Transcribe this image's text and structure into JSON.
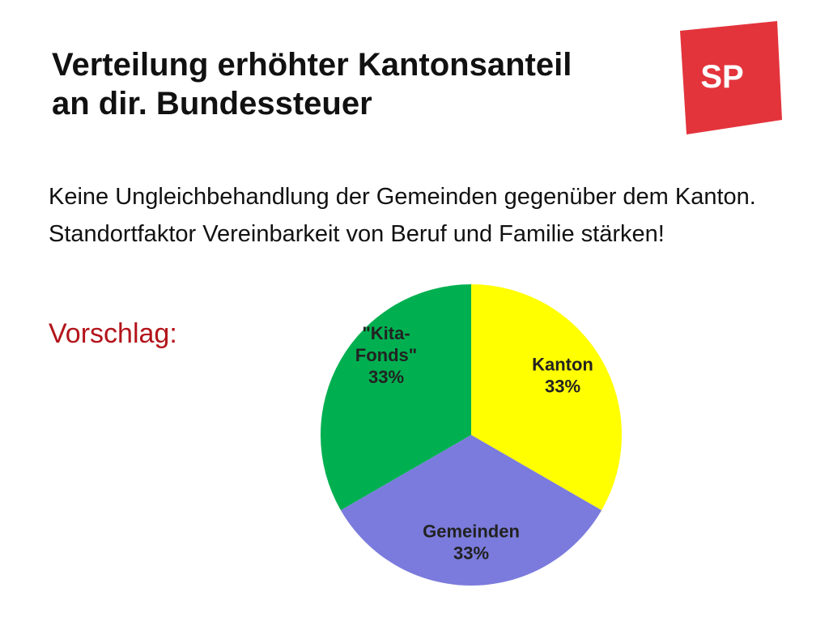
{
  "slide": {
    "title_line1": "Verteilung erhöhter Kantonsanteil",
    "title_line2": "an dir. Bundessteuer",
    "logo_text": "SP",
    "body": [
      "Keine Ungleichbehandlung der Gemeinden gegenüber dem Kanton.",
      "Standortfaktor Vereinbarkeit von Beruf und Familie stärken!"
    ],
    "proposal_label": "Vorschlag:"
  },
  "colors": {
    "brand_red": "#E3343C",
    "proposal_text": "#B3141B",
    "kanton": "#FFFF00",
    "gemeinden": "#7B7BDD",
    "kita": "#00B050"
  },
  "chart_data": {
    "type": "pie",
    "title": "",
    "slices": [
      {
        "name": "Kanton",
        "label_lines": [
          "Kanton",
          "33%"
        ],
        "value": 33,
        "color": "#FFFF00"
      },
      {
        "name": "Gemeinden",
        "label_lines": [
          "Gemeinden",
          "33%"
        ],
        "value": 33,
        "color": "#7B7BDD"
      },
      {
        "name": "Kita-Fonds",
        "label_lines": [
          "\"Kita-",
          "Fonds\"",
          "33%"
        ],
        "value": 33,
        "color": "#00B050"
      }
    ]
  }
}
